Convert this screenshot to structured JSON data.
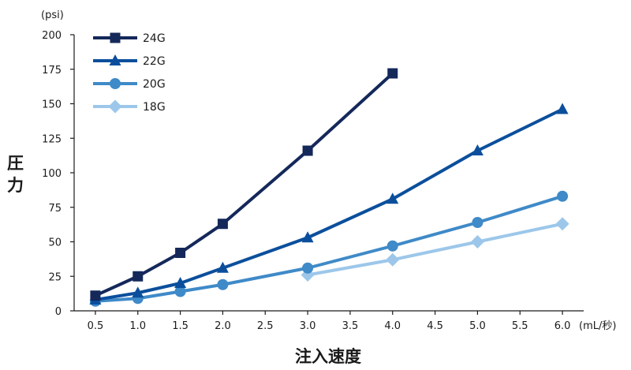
{
  "chart_data": {
    "type": "line",
    "x_unit": "(mL/秒)",
    "y_unit": "(psi)",
    "xlabel": "注入速度",
    "ylabel_chars": [
      "圧",
      "力"
    ],
    "x_ticks": [
      "0.5",
      "1.0",
      "1.5",
      "2.0",
      "2.5",
      "3.0",
      "3.5",
      "4.0",
      "4.5",
      "5.0",
      "5.5",
      "6.0"
    ],
    "y_ticks": [
      "0",
      "25",
      "50",
      "75",
      "100",
      "125",
      "150",
      "175",
      "200"
    ],
    "xlim": [
      0.25,
      6.25
    ],
    "ylim": [
      0,
      200
    ],
    "grid": false,
    "legend_position": "top-left",
    "series": [
      {
        "name": "24G",
        "color": "#14285a",
        "marker": "square",
        "points": [
          [
            0.5,
            11
          ],
          [
            1.0,
            25
          ],
          [
            1.5,
            42
          ],
          [
            2.0,
            63
          ],
          [
            3.0,
            116
          ],
          [
            4.0,
            172
          ]
        ]
      },
      {
        "name": "22G",
        "color": "#0b4f9c",
        "marker": "triangle",
        "points": [
          [
            0.5,
            8
          ],
          [
            1.0,
            13
          ],
          [
            1.5,
            20
          ],
          [
            2.0,
            31
          ],
          [
            3.0,
            53
          ],
          [
            4.0,
            81
          ],
          [
            5.0,
            116
          ],
          [
            6.0,
            146
          ]
        ]
      },
      {
        "name": "20G",
        "color": "#3f8ac8",
        "marker": "circle",
        "points": [
          [
            0.5,
            7
          ],
          [
            1.0,
            9
          ],
          [
            1.5,
            14
          ],
          [
            2.0,
            19
          ],
          [
            3.0,
            31
          ],
          [
            4.0,
            47
          ],
          [
            5.0,
            64
          ],
          [
            6.0,
            83
          ]
        ]
      },
      {
        "name": "18G",
        "color": "#9cc7ea",
        "marker": "diamond",
        "points": [
          [
            3.0,
            26
          ],
          [
            4.0,
            37
          ],
          [
            5.0,
            50
          ],
          [
            6.0,
            63
          ]
        ]
      }
    ]
  }
}
